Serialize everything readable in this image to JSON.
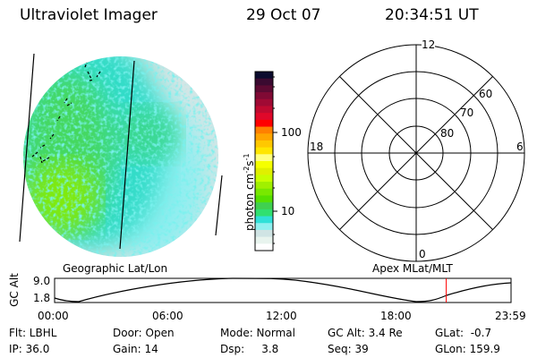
{
  "header": {
    "instrument": "Ultraviolet Imager",
    "date": "29 Oct 07",
    "time": "20:34:51 UT"
  },
  "colorbar": {
    "label": "photon cm",
    "label_exp1": "-2",
    "label_mid": "s",
    "label_exp2": "-1",
    "ticks": [
      "100",
      "10"
    ],
    "colors": [
      "#0b0b2e",
      "#3a0a30",
      "#5c0a32",
      "#800a34",
      "#a00a34",
      "#c00a30",
      "#e0082a",
      "#ff0000",
      "#ff8000",
      "#ffa500",
      "#ffc800",
      "#ffe600",
      "#ffff80",
      "#f5ff00",
      "#e0f000",
      "#c8ff00",
      "#a0f000",
      "#78e800",
      "#55e000",
      "#40d050",
      "#30e070",
      "#30e0d8",
      "#90f0f0",
      "#d0e4e4",
      "#e8f4ee",
      "#ffffff"
    ]
  },
  "polar": {
    "mlt_labels": {
      "top": "12",
      "left": "18",
      "right": "6",
      "bottom": "0"
    },
    "lat_labels": [
      "80",
      "70",
      "60"
    ]
  },
  "timeline": {
    "left_title": "Geographic Lat/Lon",
    "right_title": "Apex MLat/MLT",
    "ylabel": "GC Alt",
    "yticks": [
      "9.0",
      "1.8"
    ],
    "xticks": [
      "00:00",
      "06:00",
      "12:00",
      "18:00",
      "23:59"
    ],
    "current_time_fraction": 0.858,
    "marker_color": "#ff0000"
  },
  "info": {
    "flt": "Flt: LBHL",
    "ip": "IP: 36.0",
    "door": "Door: Open",
    "gain": "Gain: 14",
    "mode": "Mode: Normal",
    "dsp": "Dsp:     3.8",
    "gcalt": "GC Alt: 3.4 Re",
    "seq": "Seq: 39",
    "glat": "GLat:  -0.7",
    "glon": "GLon: 159.9"
  }
}
